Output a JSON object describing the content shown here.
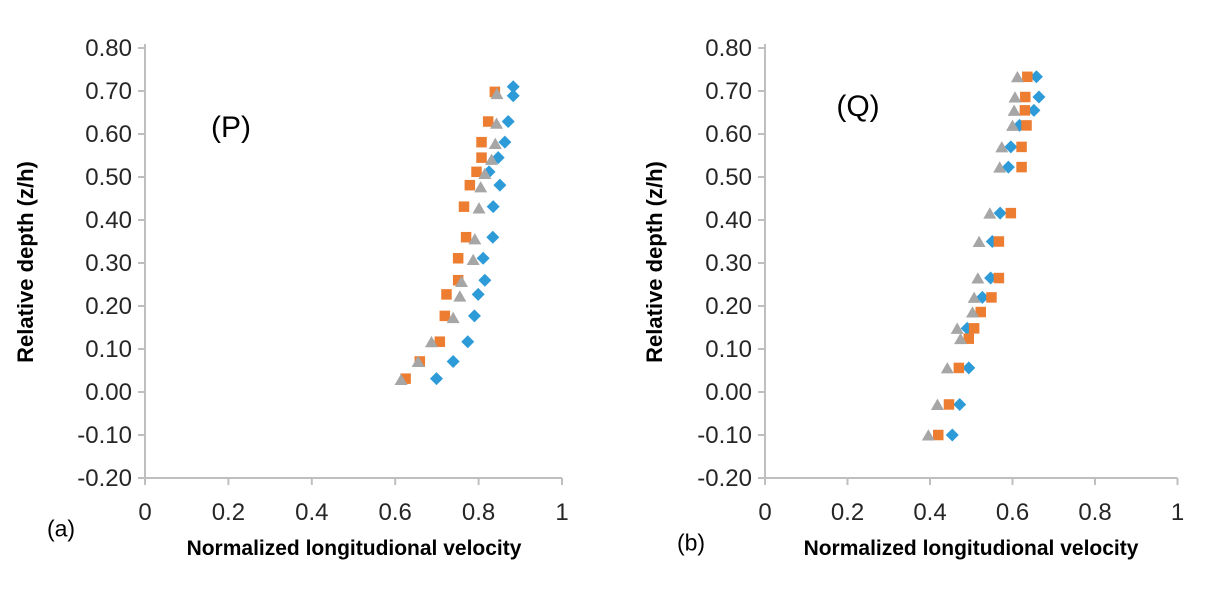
{
  "figure": {
    "background": "#ffffff",
    "axis_color": "#bfbfbf",
    "tick_label_color": "#262626",
    "title_color": "#000000"
  },
  "chart_data": [
    {
      "type": "scatter",
      "panel_label": "(a)",
      "annotation": "(P)",
      "xlabel": "Normalized longitudional velocity",
      "ylabel": "Relative depth (z/h)",
      "xlim": [
        0,
        1
      ],
      "ylim": [
        -0.2,
        0.8
      ],
      "x_ticks": [
        "0",
        "0.2",
        "0.4",
        "0.6",
        "0.8",
        "1"
      ],
      "y_ticks": [
        "0.80",
        "0.70",
        "0.60",
        "0.50",
        "0.40",
        "0.30",
        "0.20",
        "0.10",
        "0.00",
        "-0.10",
        "-0.20"
      ],
      "grid": false,
      "legend": "none",
      "series": [
        {
          "name": "blue-diamond",
          "marker": "diamond",
          "color": "#2e9bd9",
          "points": [
            [
              0.883,
              0.71
            ],
            [
              0.883,
              0.689
            ],
            [
              0.871,
              0.629
            ],
            [
              0.863,
              0.581
            ],
            [
              0.847,
              0.545
            ],
            [
              0.825,
              0.512
            ],
            [
              0.851,
              0.481
            ],
            [
              0.835,
              0.431
            ],
            [
              0.834,
              0.36
            ],
            [
              0.811,
              0.311
            ],
            [
              0.815,
              0.26
            ],
            [
              0.799,
              0.227
            ],
            [
              0.79,
              0.177
            ],
            [
              0.774,
              0.117
            ],
            [
              0.739,
              0.071
            ],
            [
              0.699,
              0.031
            ]
          ]
        },
        {
          "name": "orange-square",
          "marker": "square",
          "color": "#ed7d31",
          "points": [
            [
              0.839,
              0.698
            ],
            [
              0.823,
              0.629
            ],
            [
              0.807,
              0.581
            ],
            [
              0.807,
              0.545
            ],
            [
              0.795,
              0.512
            ],
            [
              0.779,
              0.481
            ],
            [
              0.765,
              0.431
            ],
            [
              0.77,
              0.36
            ],
            [
              0.751,
              0.311
            ],
            [
              0.751,
              0.26
            ],
            [
              0.723,
              0.227
            ],
            [
              0.719,
              0.177
            ],
            [
              0.707,
              0.117
            ],
            [
              0.659,
              0.071
            ],
            [
              0.625,
              0.031
            ]
          ]
        },
        {
          "name": "gray-triangle",
          "marker": "triangle",
          "color": "#a6a6a6",
          "points": [
            [
              0.844,
              0.694
            ],
            [
              0.843,
              0.625
            ],
            [
              0.84,
              0.578
            ],
            [
              0.831,
              0.541
            ],
            [
              0.815,
              0.508
            ],
            [
              0.805,
              0.477
            ],
            [
              0.801,
              0.428
            ],
            [
              0.791,
              0.356
            ],
            [
              0.787,
              0.308
            ],
            [
              0.759,
              0.257
            ],
            [
              0.755,
              0.223
            ],
            [
              0.739,
              0.173
            ],
            [
              0.687,
              0.117
            ],
            [
              0.655,
              0.071
            ],
            [
              0.614,
              0.029
            ]
          ]
        }
      ]
    },
    {
      "type": "scatter",
      "panel_label": "(b)",
      "annotation": "(Q)",
      "xlabel": "Normalized longitudional velocity",
      "ylabel": "Relative depth (z/h)",
      "xlim": [
        0,
        1
      ],
      "ylim": [
        -0.2,
        0.8
      ],
      "x_ticks": [
        "0",
        "0.2",
        "0.4",
        "0.6",
        "0.8",
        "1"
      ],
      "y_ticks": [
        "0.80",
        "0.70",
        "0.60",
        "0.50",
        "0.40",
        "0.30",
        "0.20",
        "0.10",
        "0.00",
        "-0.10",
        "-0.20"
      ],
      "grid": false,
      "legend": "none",
      "series": [
        {
          "name": "blue-diamond",
          "marker": "diamond",
          "color": "#2e9bd9",
          "points": [
            [
              0.658,
              0.733
            ],
            [
              0.664,
              0.686
            ],
            [
              0.652,
              0.655
            ],
            [
              0.617,
              0.62
            ],
            [
              0.596,
              0.57
            ],
            [
              0.59,
              0.523
            ],
            [
              0.57,
              0.416
            ],
            [
              0.551,
              0.35
            ],
            [
              0.547,
              0.265
            ],
            [
              0.527,
              0.22
            ],
            [
              0.49,
              0.148
            ],
            [
              0.494,
              0.056
            ],
            [
              0.472,
              -0.029
            ],
            [
              0.454,
              -0.1
            ]
          ]
        },
        {
          "name": "orange-square",
          "marker": "square",
          "color": "#ed7d31",
          "points": [
            [
              0.636,
              0.733
            ],
            [
              0.631,
              0.686
            ],
            [
              0.63,
              0.655
            ],
            [
              0.634,
              0.62
            ],
            [
              0.622,
              0.57
            ],
            [
              0.622,
              0.523
            ],
            [
              0.596,
              0.416
            ],
            [
              0.567,
              0.35
            ],
            [
              0.567,
              0.265
            ],
            [
              0.549,
              0.22
            ],
            [
              0.523,
              0.186
            ],
            [
              0.507,
              0.148
            ],
            [
              0.494,
              0.124
            ],
            [
              0.47,
              0.056
            ],
            [
              0.446,
              -0.029
            ],
            [
              0.42,
              -0.1
            ]
          ]
        },
        {
          "name": "gray-triangle",
          "marker": "triangle",
          "color": "#a6a6a6",
          "points": [
            [
              0.612,
              0.733
            ],
            [
              0.606,
              0.686
            ],
            [
              0.604,
              0.655
            ],
            [
              0.6,
              0.62
            ],
            [
              0.574,
              0.57
            ],
            [
              0.569,
              0.523
            ],
            [
              0.545,
              0.416
            ],
            [
              0.519,
              0.35
            ],
            [
              0.516,
              0.265
            ],
            [
              0.507,
              0.22
            ],
            [
              0.503,
              0.186
            ],
            [
              0.466,
              0.148
            ],
            [
              0.474,
              0.124
            ],
            [
              0.442,
              0.056
            ],
            [
              0.418,
              -0.029
            ],
            [
              0.396,
              -0.1
            ]
          ]
        }
      ]
    }
  ]
}
